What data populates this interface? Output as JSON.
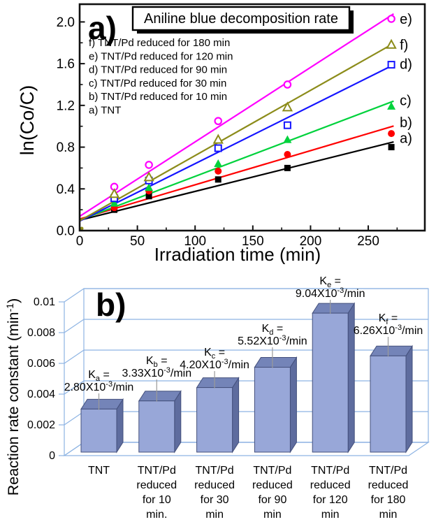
{
  "chart_data": [
    {
      "id": "a",
      "type": "scatter",
      "panel_label": "a)",
      "title": "Aniline blue decomposition rate",
      "xlabel": "Irradiation time (min)",
      "ylabel": "ln(Co/C)",
      "xlim": [
        0,
        299
      ],
      "ylim": [
        0,
        2.17
      ],
      "x_ticks": [
        0,
        50,
        100,
        150,
        200,
        250
      ],
      "x_minor_ticks": [
        25,
        75,
        125,
        175,
        225,
        275
      ],
      "y_ticks": [
        "0.0",
        "0.4",
        "0.8",
        "1.2",
        "1.6",
        "2.0"
      ],
      "y_minor_ticks": [
        0.2,
        0.6,
        1.0,
        1.4,
        1.8
      ],
      "legend": [
        "f) TNT/Pd reduced for 180 min",
        "e) TNT/Pd reduced for 120 min",
        "d) TNT/Pd reduced for 90 min",
        "c) TNT/Pd reduced for 30 min",
        "b) TNT/Pd reduced for 10 min",
        "a) TNT"
      ],
      "x": [
        0,
        30,
        60,
        120,
        180,
        270
      ],
      "series": [
        {
          "name": "TNT",
          "label": "a)",
          "color": "#000000",
          "marker": "square-filled",
          "values": [
            0,
            0.2,
            0.33,
            0.49,
            0.6,
            0.8
          ]
        },
        {
          "name": "TNT/Pd reduced for 10 min",
          "label": "b)",
          "color": "#ff0000",
          "marker": "circle-filled",
          "values": [
            0,
            0.22,
            0.38,
            0.57,
            0.73,
            0.93
          ]
        },
        {
          "name": "TNT/Pd reduced for 30 min",
          "label": "c)",
          "color": "#00d23c",
          "marker": "triangle-filled",
          "values": [
            0,
            0.26,
            0.41,
            0.64,
            0.87,
            1.19
          ]
        },
        {
          "name": "TNT/Pd reduced for 90 min",
          "label": "d)",
          "color": "#1414ff",
          "marker": "square-open",
          "values": [
            0,
            0.31,
            0.48,
            0.79,
            1.01,
            1.59
          ]
        },
        {
          "name": "TNT/Pd reduced for 120 min",
          "label": "e)",
          "color": "#ff00ff",
          "marker": "circle-open",
          "values": [
            0,
            0.42,
            0.63,
            1.05,
            1.4,
            2.03
          ]
        },
        {
          "name": "TNT/Pd reduced for 180 min",
          "label": "f)",
          "color": "#8c8c1a",
          "marker": "triangle-open",
          "values": [
            0,
            0.35,
            0.51,
            0.87,
            1.18,
            1.78
          ]
        }
      ],
      "fit": "linear-least-squares"
    },
    {
      "id": "b",
      "type": "bar3d",
      "panel_label": "b)",
      "ylabel_parts": {
        "pre": "Reaction rate constant (min",
        "sup": "-1",
        "post": ")"
      },
      "ylim": [
        0,
        0.01
      ],
      "y_ticks": [
        "0",
        "0.002",
        "0.004",
        "0.006",
        "0.008",
        "0.01"
      ],
      "y_tick_values": [
        0,
        0.002,
        0.004,
        0.006,
        0.008,
        0.01
      ],
      "k_format": {
        "prefix": "K",
        "eq": " =",
        "mult": "X10",
        "exp": "-3",
        "unit": "/min"
      },
      "bars": [
        {
          "category_lines": [
            "TNT"
          ],
          "value": 0.0028,
          "k_sub": "a",
          "k_mantissa": "2.80"
        },
        {
          "category_lines": [
            "TNT/Pd",
            "reduced",
            "for 10",
            "min."
          ],
          "value": 0.00333,
          "k_sub": "b",
          "k_mantissa": "3.33"
        },
        {
          "category_lines": [
            "TNT/Pd",
            "reduced",
            "for 30",
            "min"
          ],
          "value": 0.0042,
          "k_sub": "c",
          "k_mantissa": "4.20"
        },
        {
          "category_lines": [
            "TNT/Pd",
            "reduced",
            "for 90",
            "min"
          ],
          "value": 0.00552,
          "k_sub": "d",
          "k_mantissa": "5.52"
        },
        {
          "category_lines": [
            "TNT/Pd",
            "reduced",
            "for 120",
            "min"
          ],
          "value": 0.00904,
          "k_sub": "e",
          "k_mantissa": "9.04"
        },
        {
          "category_lines": [
            "TNT/Pd",
            "reduced",
            "for 180",
            "min"
          ],
          "value": 0.00626,
          "k_sub": "f",
          "k_mantissa": "6.26"
        }
      ],
      "colors": {
        "bar_front": "#98a7d8",
        "bar_top": "#7484b8",
        "bar_side": "#5e6c9e",
        "bar_outline": "#44507c",
        "grid": "#8eb4e3",
        "leader": "#9a9a9a"
      }
    }
  ]
}
